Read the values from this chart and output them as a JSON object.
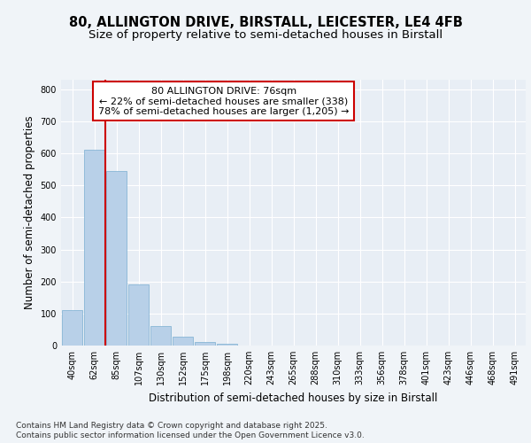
{
  "title1": "80, ALLINGTON DRIVE, BIRSTALL, LEICESTER, LE4 4FB",
  "title2": "Size of property relative to semi-detached houses in Birstall",
  "xlabel": "Distribution of semi-detached houses by size in Birstall",
  "ylabel": "Number of semi-detached properties",
  "categories": [
    "40sqm",
    "62sqm",
    "85sqm",
    "107sqm",
    "130sqm",
    "152sqm",
    "175sqm",
    "198sqm",
    "220sqm",
    "243sqm",
    "265sqm",
    "288sqm",
    "310sqm",
    "333sqm",
    "356sqm",
    "378sqm",
    "401sqm",
    "423sqm",
    "446sqm",
    "468sqm",
    "491sqm"
  ],
  "values": [
    110,
    612,
    546,
    190,
    62,
    28,
    11,
    6,
    0,
    0,
    0,
    0,
    0,
    0,
    0,
    0,
    0,
    0,
    0,
    0,
    0
  ],
  "bar_color": "#b8d0e8",
  "bar_edge_color": "#7aaed0",
  "property_line_x": 1.5,
  "annotation_line1": "80 ALLINGTON DRIVE: 76sqm",
  "annotation_line2": "← 22% of semi-detached houses are smaller (338)",
  "annotation_line3": "78% of semi-detached houses are larger (1,205) →",
  "footnote1": "Contains HM Land Registry data © Crown copyright and database right 2025.",
  "footnote2": "Contains public sector information licensed under the Open Government Licence v3.0.",
  "ylim": [
    0,
    830
  ],
  "yticks": [
    0,
    100,
    200,
    300,
    400,
    500,
    600,
    700,
    800
  ],
  "bg_color": "#f0f4f8",
  "plot_bg_color": "#e8eef5",
  "grid_color": "#ffffff",
  "red_line_color": "#cc0000",
  "annotation_box_edge_color": "#cc0000",
  "annotation_box_fill": "#ffffff",
  "title_fontsize": 10.5,
  "subtitle_fontsize": 9.5,
  "axis_label_fontsize": 8.5,
  "tick_fontsize": 7,
  "annotation_fontsize": 8,
  "footnote_fontsize": 6.5
}
